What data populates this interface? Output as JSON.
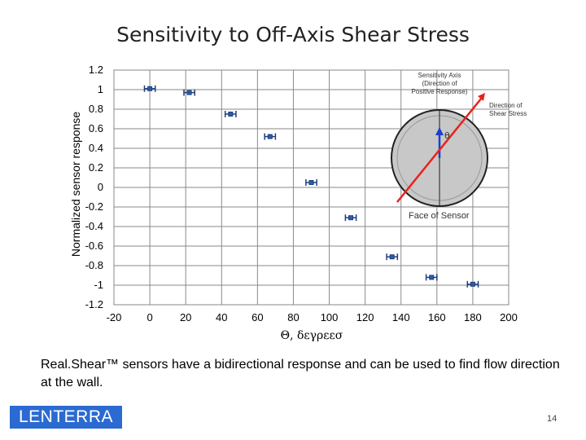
{
  "slide": {
    "title": "Sensitivity to Off-Axis Shear Stress",
    "caption": "Real.Shear™ sensors have a bidirectional response and can be used to find flow direction at the wall.",
    "logo_left": "LEN",
    "logo_right": "TERRA",
    "page_number": "14"
  },
  "chart_data": {
    "type": "scatter",
    "xlabel": "Θ, δεγρεεσ",
    "ylabel": "Normalized sensor response",
    "xlim": [
      -20,
      200
    ],
    "ylim": [
      -1.2,
      1.2
    ],
    "xticks": [
      "-20",
      "0",
      "20",
      "40",
      "60",
      "80",
      "100",
      "120",
      "140",
      "160",
      "180",
      "200"
    ],
    "yticks": [
      "1.2",
      "1",
      "0.8",
      "0.6",
      "0.4",
      "0.2",
      "0",
      "-0.2",
      "-0.4",
      "-0.6",
      "-0.8",
      "-1",
      "-1.2"
    ],
    "grid": true,
    "series": [
      {
        "points": [
          {
            "x": 0,
            "y": 1.01,
            "xerr": 3
          },
          {
            "x": 22,
            "y": 0.97,
            "xerr": 3
          },
          {
            "x": 45,
            "y": 0.75,
            "xerr": 3
          },
          {
            "x": 67,
            "y": 0.52,
            "xerr": 3
          },
          {
            "x": 90,
            "y": 0.05,
            "xerr": 3
          },
          {
            "x": 112,
            "y": -0.31,
            "xerr": 3
          },
          {
            "x": 135,
            "y": -0.71,
            "xerr": 3
          },
          {
            "x": 157,
            "y": -0.92,
            "xerr": 3
          },
          {
            "x": 180,
            "y": -0.99,
            "xerr": 3
          }
        ],
        "color": "#1f3f7a"
      }
    ],
    "inset": {
      "sensitivity_axis_label": [
        "Sensitivity Axis",
        "(Direction of",
        "Positive Response)"
      ],
      "shear_label": [
        "Direction of",
        "Shear Stress"
      ],
      "theta_label": "θ",
      "face_label": "Face of Sensor",
      "arrow_color_shear": "#e8231d",
      "arrow_color_axis": "#1b3fd1",
      "disc_color": "#c8c8c8"
    }
  }
}
